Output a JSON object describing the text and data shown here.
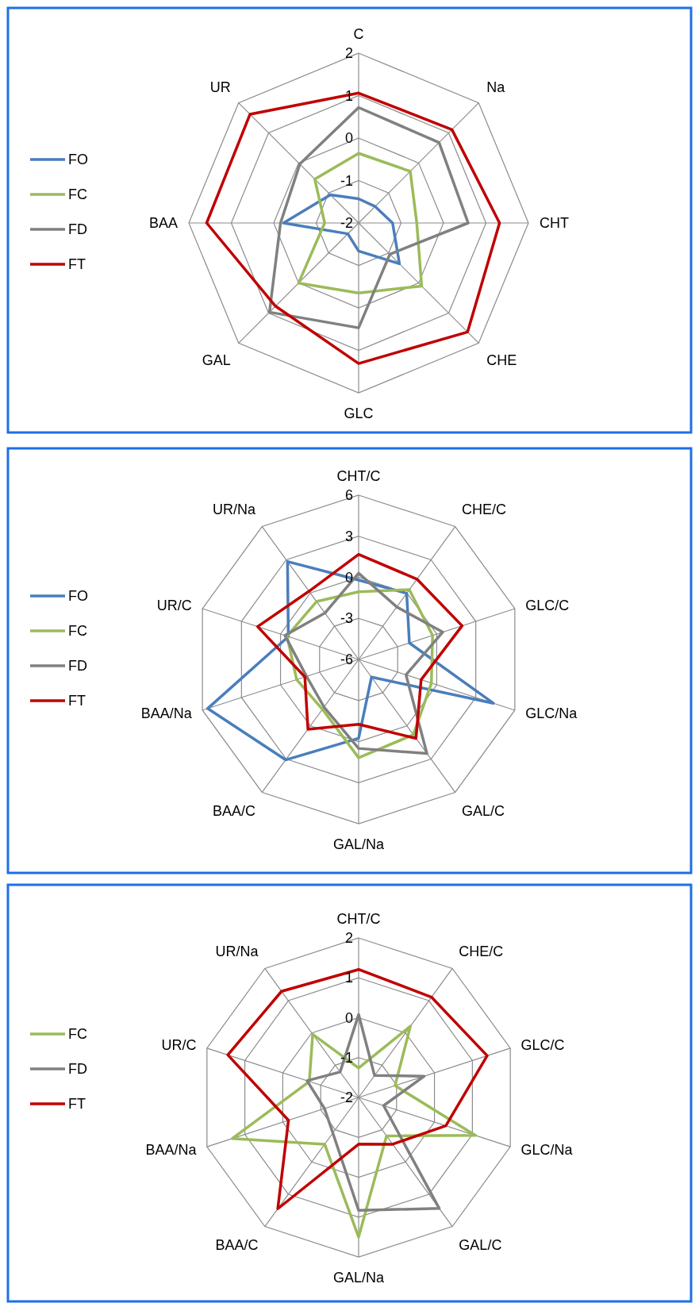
{
  "chart_data": [
    {
      "type": "radar",
      "categories": [
        "C",
        "Na",
        "CHT",
        "CHE",
        "GLC",
        "GAL",
        "BAA",
        "UR"
      ],
      "ylim": [
        -2,
        2
      ],
      "yticks": [
        -2,
        -1,
        0,
        1,
        2
      ],
      "grid": true,
      "legend": "left",
      "line_style": "solid",
      "marker": "none",
      "series": [
        {
          "name": "FO",
          "color": "#4a7ebb",
          "values": [
            -1.43,
            -1.45,
            -1.2,
            -0.64,
            -1.34,
            -1.64,
            -0.23,
            -1.06
          ]
        },
        {
          "name": "FC",
          "color": "#9bbb59",
          "values": [
            -0.36,
            -0.28,
            -0.63,
            0.1,
            -0.35,
            0.0,
            -1.2,
            -0.54
          ]
        },
        {
          "name": "FD",
          "color": "#808080",
          "values": [
            0.72,
            0.68,
            0.58,
            -0.96,
            0.47,
            0.97,
            -0.16,
            -0.04
          ]
        },
        {
          "name": "FT",
          "color": "#c00000",
          "values": [
            1.06,
            1.11,
            1.32,
            1.63,
            1.31,
            0.77,
            1.58,
            1.62
          ]
        }
      ]
    },
    {
      "type": "radar",
      "categories": [
        "CHT/C",
        "CHE/C",
        "GLC/C",
        "GLC/Na",
        "GAL/C",
        "GAL/Na",
        "BAA/C",
        "BAA/Na",
        "UR/C",
        "UR/Na"
      ],
      "ylim": [
        -6,
        6
      ],
      "yticks": [
        -6,
        -3,
        0,
        3,
        6
      ],
      "grid": true,
      "legend": "left",
      "line_style": "solid",
      "marker": "none",
      "series": [
        {
          "name": "FO",
          "color": "#4a7ebb",
          "values": [
            -0.2,
            -0.03,
            -2.1,
            4.35,
            -4.4,
            -0.24,
            3.07,
            5.6,
            -0.6,
            2.84
          ]
        },
        {
          "name": "FC",
          "color": "#9bbb59",
          "values": [
            -1.06,
            0.3,
            -0.32,
            -0.41,
            0.8,
            1.18,
            -1.5,
            -1.24,
            -0.5,
            -0.77
          ]
        },
        {
          "name": "FD",
          "color": "#808080",
          "values": [
            0.3,
            -1.26,
            0.46,
            -2.36,
            2.49,
            0.5,
            -1.7,
            -2.0,
            -0.34,
            -1.81
          ]
        },
        {
          "name": "FT",
          "color": "#c00000",
          "values": [
            1.67,
            1.25,
            1.95,
            -1.2,
            1.13,
            -1.26,
            0.3,
            -1.87,
            1.76,
            0.16
          ]
        }
      ]
    },
    {
      "type": "radar",
      "categories": [
        "CHT/C",
        "CHE/C",
        "GLC/C",
        "GLC/Na",
        "GAL/C",
        "GAL/Na",
        "BAA/C",
        "BAA/Na",
        "UR/C",
        "UR/Na"
      ],
      "ylim": [
        -2,
        2
      ],
      "yticks": [
        -2,
        -1,
        0,
        1,
        2
      ],
      "grid": true,
      "legend": "left",
      "line_style": "solid",
      "marker": "none",
      "series": [
        {
          "name": "FC",
          "color": "#9bbb59",
          "values": [
            -1.26,
            0.21,
            -1.04,
            1.08,
            -0.81,
            1.5,
            -0.55,
            1.33,
            -0.7,
            -0.04
          ]
        },
        {
          "name": "FD",
          "color": "#808080",
          "values": [
            0.08,
            -1.32,
            -0.27,
            -1.34,
            1.44,
            0.83,
            -0.9,
            -1.1,
            -0.64,
            -1.21
          ]
        },
        {
          "name": "FT",
          "color": "#c00000",
          "values": [
            1.21,
            1.11,
            1.39,
            0.3,
            -0.55,
            -0.83,
            1.45,
            -0.15,
            1.45,
            1.29
          ]
        }
      ]
    }
  ]
}
